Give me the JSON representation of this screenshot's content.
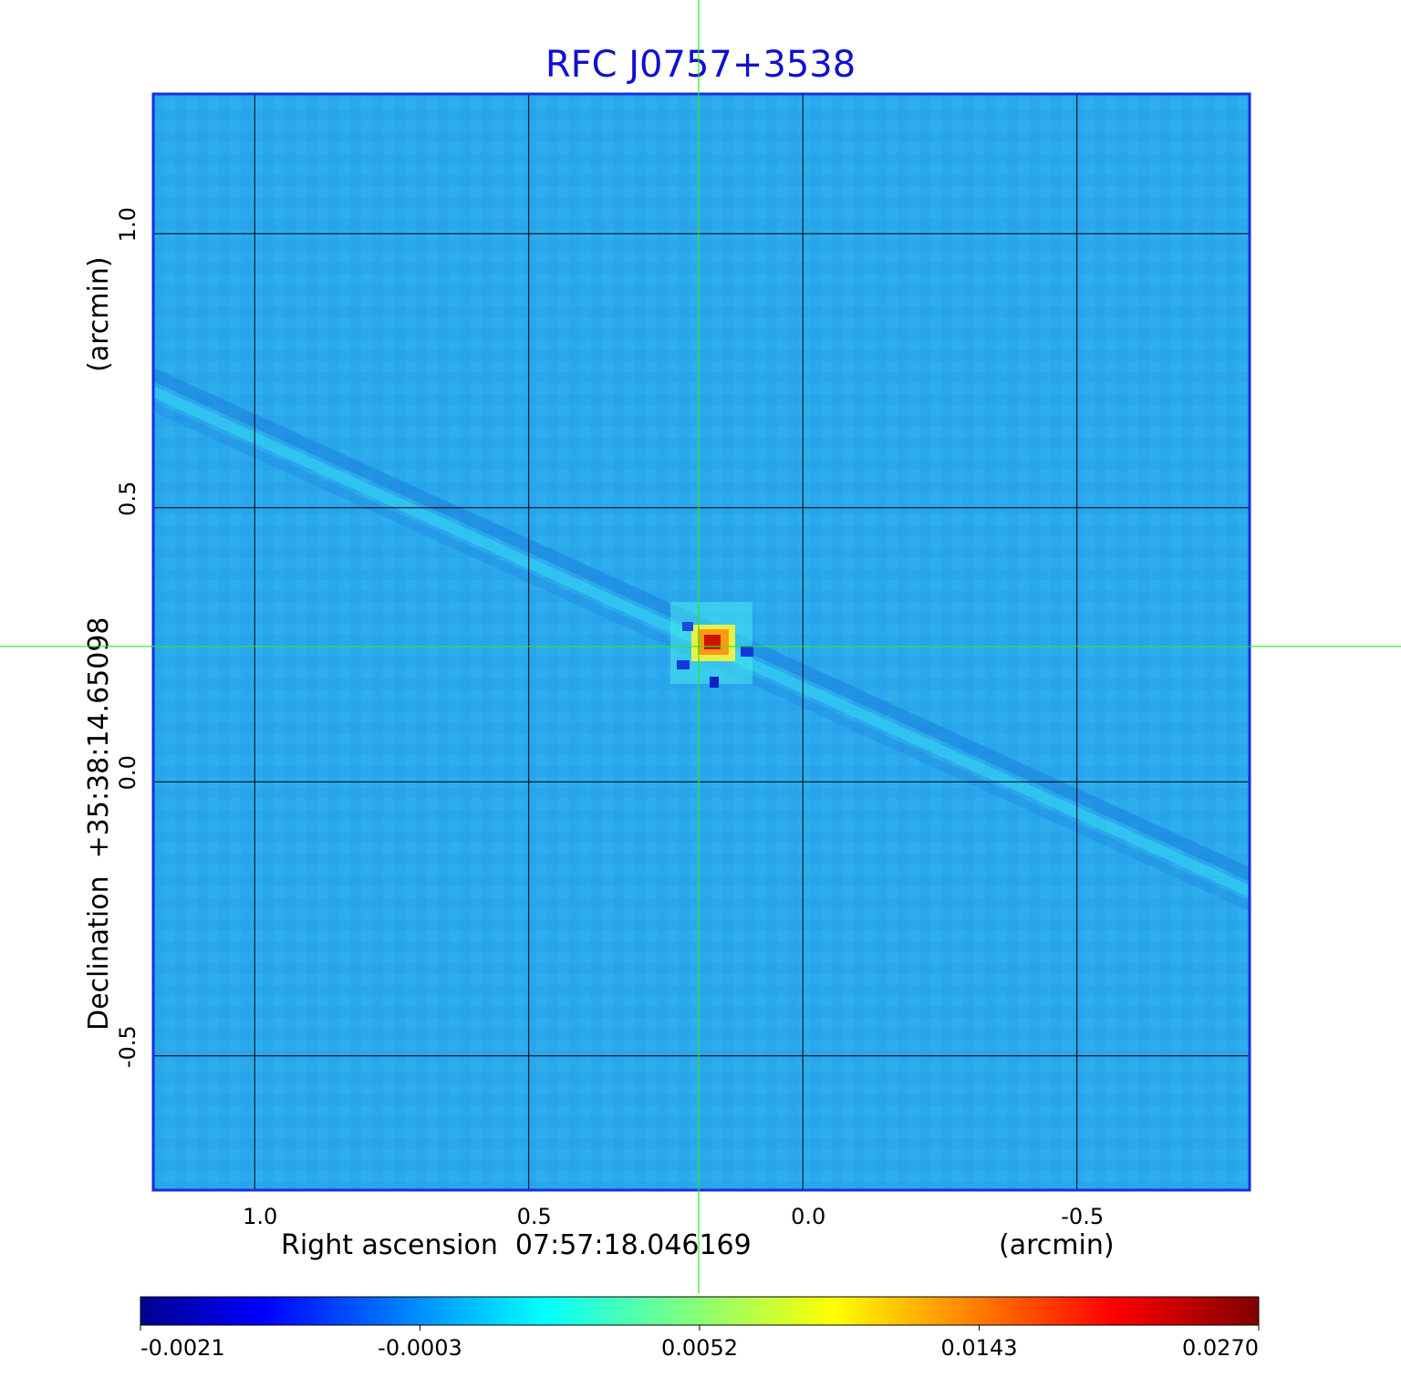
{
  "chart_data": {
    "type": "heatmap",
    "title": "RFC J0757+3538",
    "xlabel": "Right ascension  07:57:18.046169",
    "xlabel_unit": "(arcmin)",
    "ylabel": "Declination  +35:38:14.65098",
    "ylabel_unit": "(arcmin)",
    "x_ticks": [
      "1.0",
      "0.5",
      "0.0",
      "-0.5"
    ],
    "y_ticks": [
      "1.0",
      "0.5",
      "0.0",
      "-0.5"
    ],
    "x_tick_values": [
      1.0,
      0.5,
      0.0,
      -0.5
    ],
    "y_tick_values": [
      1.0,
      0.5,
      0.0,
      -0.5
    ],
    "xlim": [
      1.185,
      -0.815
    ],
    "ylim": [
      -0.745,
      1.255
    ],
    "grid": true,
    "colormap": "jet",
    "colorbar_ticks": [
      "-0.0021",
      "-0.0003",
      "0.0052",
      "0.0143",
      "0.0270"
    ],
    "colorbar_range": [
      -0.0021,
      0.027
    ],
    "peak": {
      "x": 0.17,
      "y": 0.25,
      "value": 0.027
    },
    "crosshair": {
      "x": 0.19,
      "y": 0.247
    },
    "colors": {
      "title": "#1010d0",
      "frame": "#1530e0",
      "grid": "#000000",
      "crosshair": "#22ee22",
      "background_map": "#2aa8ec"
    }
  }
}
